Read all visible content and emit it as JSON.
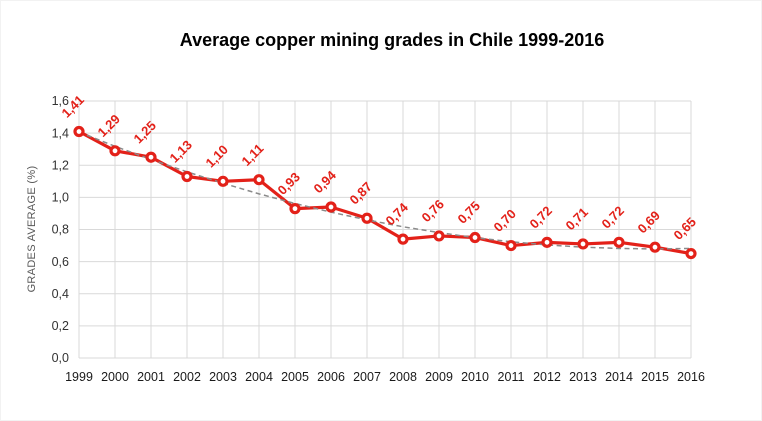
{
  "chart_data": {
    "type": "line",
    "title": "Average copper mining grades in Chile 1999-2016",
    "ylabel": "GRADES AVERAGE (%)",
    "xlabel": "",
    "categories": [
      "1999",
      "2000",
      "2001",
      "2002",
      "2003",
      "2004",
      "2005",
      "2006",
      "2007",
      "2008",
      "2009",
      "2010",
      "2011",
      "2012",
      "2013",
      "2014",
      "2015",
      "2016"
    ],
    "values": [
      1.41,
      1.29,
      1.25,
      1.13,
      1.1,
      1.11,
      0.93,
      0.94,
      0.87,
      0.74,
      0.76,
      0.75,
      0.7,
      0.72,
      0.71,
      0.72,
      0.69,
      0.65
    ],
    "point_labels": [
      "1,41",
      "1,29",
      "1,25",
      "1,13",
      "1,10",
      "1,11",
      "0,93",
      "0,94",
      "0,87",
      "0,74",
      "0,76",
      "0,75",
      "0,70",
      "0,72",
      "0,71",
      "0,72",
      "0,69",
      "0,65"
    ],
    "ylim": [
      0,
      1.6
    ],
    "ytick_step": 0.2,
    "ytick_labels": [
      "0,0",
      "0,2",
      "0,4",
      "0,6",
      "0,8",
      "1,0",
      "1,2",
      "1,4",
      "1,6"
    ],
    "decimal_separator": ",",
    "grid": "both",
    "legend": "none",
    "series_color": "#e32119",
    "grid_color": "#d9d9d9",
    "trendline": {
      "type": "polynomial",
      "order": 2,
      "style": "dashed",
      "color": "#8a8a8a",
      "values": [
        1.407,
        1.318,
        1.236,
        1.159,
        1.088,
        1.022,
        0.962,
        0.908,
        0.86,
        0.817,
        0.781,
        0.749,
        0.724,
        0.704,
        0.69,
        0.682,
        0.679,
        0.682
      ]
    }
  }
}
